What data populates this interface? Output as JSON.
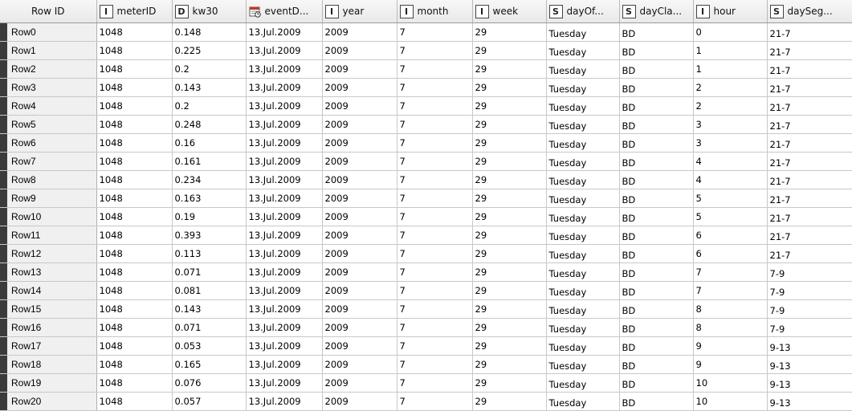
{
  "columns": [
    {
      "label": "Row ID",
      "type": ""
    },
    {
      "label": "meterID",
      "type": "I"
    },
    {
      "label": "kw30",
      "type": "D"
    },
    {
      "label": "eventD...",
      "type": "date"
    },
    {
      "label": "year",
      "type": "I"
    },
    {
      "label": "month",
      "type": "I"
    },
    {
      "label": "week",
      "type": "I"
    },
    {
      "label": "dayOf...",
      "type": "S"
    },
    {
      "label": "dayCla...",
      "type": "S"
    },
    {
      "label": "hour",
      "type": "I"
    },
    {
      "label": "daySeg...",
      "type": "S"
    }
  ],
  "rows": [
    {
      "id": "Row0",
      "meterID": "1048",
      "kw30": "0.148",
      "eventDate": "13.Jul.2009",
      "year": "2009",
      "month": "7",
      "week": "29",
      "dayOfWeek": "Tuesday",
      "dayClass": "BD",
      "hour": "0",
      "daySeg": "21-7"
    },
    {
      "id": "Row1",
      "meterID": "1048",
      "kw30": "0.225",
      "eventDate": "13.Jul.2009",
      "year": "2009",
      "month": "7",
      "week": "29",
      "dayOfWeek": "Tuesday",
      "dayClass": "BD",
      "hour": "1",
      "daySeg": "21-7"
    },
    {
      "id": "Row2",
      "meterID": "1048",
      "kw30": "0.2",
      "eventDate": "13.Jul.2009",
      "year": "2009",
      "month": "7",
      "week": "29",
      "dayOfWeek": "Tuesday",
      "dayClass": "BD",
      "hour": "1",
      "daySeg": "21-7"
    },
    {
      "id": "Row3",
      "meterID": "1048",
      "kw30": "0.143",
      "eventDate": "13.Jul.2009",
      "year": "2009",
      "month": "7",
      "week": "29",
      "dayOfWeek": "Tuesday",
      "dayClass": "BD",
      "hour": "2",
      "daySeg": "21-7"
    },
    {
      "id": "Row4",
      "meterID": "1048",
      "kw30": "0.2",
      "eventDate": "13.Jul.2009",
      "year": "2009",
      "month": "7",
      "week": "29",
      "dayOfWeek": "Tuesday",
      "dayClass": "BD",
      "hour": "2",
      "daySeg": "21-7"
    },
    {
      "id": "Row5",
      "meterID": "1048",
      "kw30": "0.248",
      "eventDate": "13.Jul.2009",
      "year": "2009",
      "month": "7",
      "week": "29",
      "dayOfWeek": "Tuesday",
      "dayClass": "BD",
      "hour": "3",
      "daySeg": "21-7"
    },
    {
      "id": "Row6",
      "meterID": "1048",
      "kw30": "0.16",
      "eventDate": "13.Jul.2009",
      "year": "2009",
      "month": "7",
      "week": "29",
      "dayOfWeek": "Tuesday",
      "dayClass": "BD",
      "hour": "3",
      "daySeg": "21-7"
    },
    {
      "id": "Row7",
      "meterID": "1048",
      "kw30": "0.161",
      "eventDate": "13.Jul.2009",
      "year": "2009",
      "month": "7",
      "week": "29",
      "dayOfWeek": "Tuesday",
      "dayClass": "BD",
      "hour": "4",
      "daySeg": "21-7"
    },
    {
      "id": "Row8",
      "meterID": "1048",
      "kw30": "0.234",
      "eventDate": "13.Jul.2009",
      "year": "2009",
      "month": "7",
      "week": "29",
      "dayOfWeek": "Tuesday",
      "dayClass": "BD",
      "hour": "4",
      "daySeg": "21-7"
    },
    {
      "id": "Row9",
      "meterID": "1048",
      "kw30": "0.163",
      "eventDate": "13.Jul.2009",
      "year": "2009",
      "month": "7",
      "week": "29",
      "dayOfWeek": "Tuesday",
      "dayClass": "BD",
      "hour": "5",
      "daySeg": "21-7"
    },
    {
      "id": "Row10",
      "meterID": "1048",
      "kw30": "0.19",
      "eventDate": "13.Jul.2009",
      "year": "2009",
      "month": "7",
      "week": "29",
      "dayOfWeek": "Tuesday",
      "dayClass": "BD",
      "hour": "5",
      "daySeg": "21-7"
    },
    {
      "id": "Row11",
      "meterID": "1048",
      "kw30": "0.393",
      "eventDate": "13.Jul.2009",
      "year": "2009",
      "month": "7",
      "week": "29",
      "dayOfWeek": "Tuesday",
      "dayClass": "BD",
      "hour": "6",
      "daySeg": "21-7"
    },
    {
      "id": "Row12",
      "meterID": "1048",
      "kw30": "0.113",
      "eventDate": "13.Jul.2009",
      "year": "2009",
      "month": "7",
      "week": "29",
      "dayOfWeek": "Tuesday",
      "dayClass": "BD",
      "hour": "6",
      "daySeg": "21-7"
    },
    {
      "id": "Row13",
      "meterID": "1048",
      "kw30": "0.071",
      "eventDate": "13.Jul.2009",
      "year": "2009",
      "month": "7",
      "week": "29",
      "dayOfWeek": "Tuesday",
      "dayClass": "BD",
      "hour": "7",
      "daySeg": "7-9"
    },
    {
      "id": "Row14",
      "meterID": "1048",
      "kw30": "0.081",
      "eventDate": "13.Jul.2009",
      "year": "2009",
      "month": "7",
      "week": "29",
      "dayOfWeek": "Tuesday",
      "dayClass": "BD",
      "hour": "7",
      "daySeg": "7-9"
    },
    {
      "id": "Row15",
      "meterID": "1048",
      "kw30": "0.143",
      "eventDate": "13.Jul.2009",
      "year": "2009",
      "month": "7",
      "week": "29",
      "dayOfWeek": "Tuesday",
      "dayClass": "BD",
      "hour": "8",
      "daySeg": "7-9"
    },
    {
      "id": "Row16",
      "meterID": "1048",
      "kw30": "0.071",
      "eventDate": "13.Jul.2009",
      "year": "2009",
      "month": "7",
      "week": "29",
      "dayOfWeek": "Tuesday",
      "dayClass": "BD",
      "hour": "8",
      "daySeg": "7-9"
    },
    {
      "id": "Row17",
      "meterID": "1048",
      "kw30": "0.053",
      "eventDate": "13.Jul.2009",
      "year": "2009",
      "month": "7",
      "week": "29",
      "dayOfWeek": "Tuesday",
      "dayClass": "BD",
      "hour": "9",
      "daySeg": "9-13"
    },
    {
      "id": "Row18",
      "meterID": "1048",
      "kw30": "0.165",
      "eventDate": "13.Jul.2009",
      "year": "2009",
      "month": "7",
      "week": "29",
      "dayOfWeek": "Tuesday",
      "dayClass": "BD",
      "hour": "9",
      "daySeg": "9-13"
    },
    {
      "id": "Row19",
      "meterID": "1048",
      "kw30": "0.076",
      "eventDate": "13.Jul.2009",
      "year": "2009",
      "month": "7",
      "week": "29",
      "dayOfWeek": "Tuesday",
      "dayClass": "BD",
      "hour": "10",
      "daySeg": "9-13"
    },
    {
      "id": "Row20",
      "meterID": "1048",
      "kw30": "0.057",
      "eventDate": "13.Jul.2009",
      "year": "2009",
      "month": "7",
      "week": "29",
      "dayOfWeek": "Tuesday",
      "dayClass": "BD",
      "hour": "10",
      "daySeg": "9-13"
    }
  ]
}
